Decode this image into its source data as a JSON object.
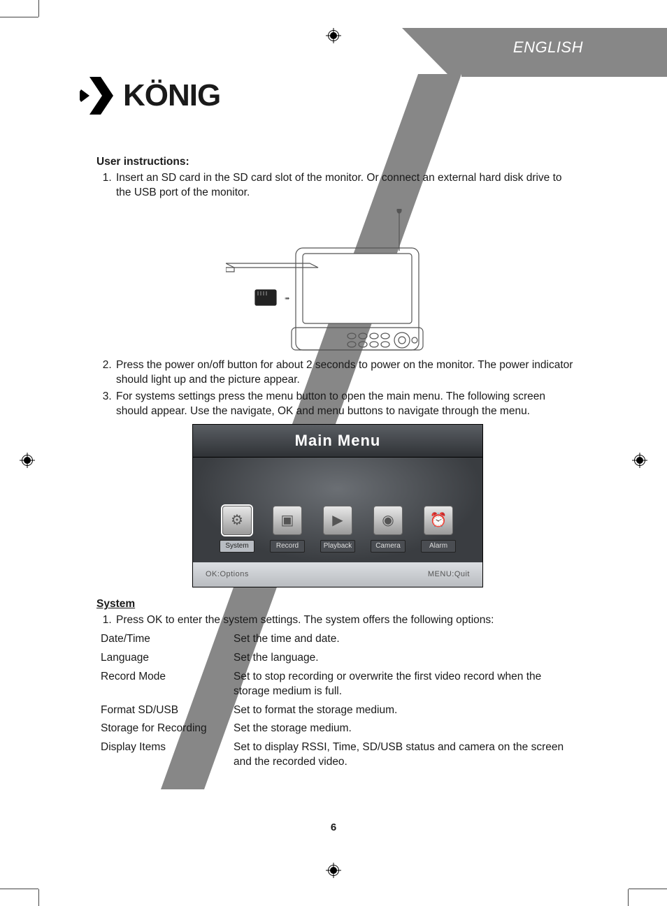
{
  "language_label": "ENGLISH",
  "logo_text": "KÖNIG",
  "page_number": "6",
  "colors": {
    "text": "#1a1a1a",
    "banner_grey": "#878787",
    "menu_title_bg_top": "#5a5e63",
    "menu_title_bg_bottom": "#2f3236",
    "menu_body_center": "#6b6f74",
    "menu_body_edge": "#3a3d41",
    "menu_foot_top": "#dcdfe3",
    "menu_foot_bottom": "#b9bcc0",
    "icon_face_top": "#e8e8e8",
    "icon_face_bottom": "#9a9a9a"
  },
  "instructions_heading": "User instructions:",
  "instructions": [
    "Insert an SD card in the SD card slot of the monitor. Or connect an external hard disk drive to the USB port of the monitor.",
    "Press the power on/off button for about 2 seconds to power on the monitor. The power indicator should light up and the picture appear.",
    "For systems settings press the menu button to open the main menu. The following screen should appear. Use the navigate, OK and menu buttons to navigate through the menu."
  ],
  "main_menu": {
    "title": "Main Menu",
    "items": [
      {
        "label": "System",
        "glyph": "⚙",
        "selected": true
      },
      {
        "label": "Record",
        "glyph": "▣",
        "selected": false
      },
      {
        "label": "Playback",
        "glyph": "▶",
        "selected": false
      },
      {
        "label": "Camera",
        "glyph": "◉",
        "selected": false
      },
      {
        "label": "Alarm",
        "glyph": "⏰",
        "selected": false
      }
    ],
    "footer_left": "OK:Options",
    "footer_right": "MENU:Quit"
  },
  "system_section": {
    "title": "System",
    "intro": "Press OK to enter the system settings. The system offers the following options:",
    "rows": [
      {
        "name": "Date/Time",
        "desc": "Set the time and date."
      },
      {
        "name": "Language",
        "desc": "Set the language."
      },
      {
        "name": "Record Mode",
        "desc": "Set to stop recording or overwrite the first video record when the storage medium is full."
      },
      {
        "name": "Format SD/USB",
        "desc": "Set to format the storage medium."
      },
      {
        "name": "Storage for Recording",
        "desc": "Set the storage medium."
      },
      {
        "name": "Display Items",
        "desc": "Set to display RSSI, Time, SD/USB status and camera on the screen and the recorded video."
      }
    ]
  }
}
